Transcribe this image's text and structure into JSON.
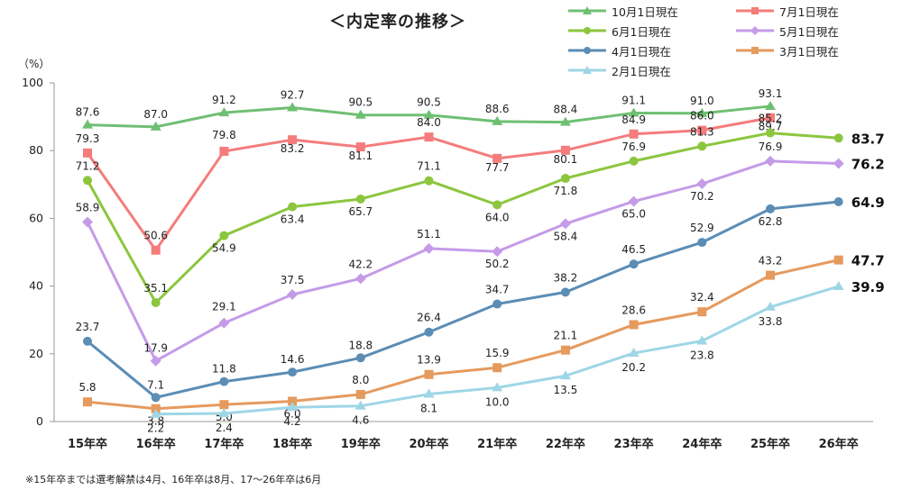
{
  "title": "＜内定率の推移＞",
  "unit_label": "（%）",
  "footnote": "※15年卒までは選考解禁は4月、16年卒は8月、17〜26年卒は6月",
  "chart_data": {
    "type": "line",
    "title": "＜内定率の推移＞",
    "xlabel": "",
    "ylabel": "（%）",
    "ylim": [
      0,
      100
    ],
    "yticks": [
      "0",
      "20",
      "40",
      "60",
      "80",
      "100"
    ],
    "grid": false,
    "legend_position": "top-right",
    "categories": [
      "15年卒",
      "16年卒",
      "17年卒",
      "18年卒",
      "19年卒",
      "20年卒",
      "21年卒",
      "22年卒",
      "23年卒",
      "24年卒",
      "25年卒",
      "26年卒"
    ],
    "series": [
      {
        "name": "10月1日現在",
        "color": "#6fbf73",
        "marker": "triangle",
        "values": [
          87.6,
          87.0,
          91.2,
          92.7,
          90.5,
          90.5,
          88.6,
          88.4,
          91.1,
          91.0,
          93.1,
          null
        ],
        "labels": [
          "87.6",
          "87.0",
          "91.2",
          "92.7",
          "90.5",
          "90.5",
          "88.6",
          "88.4",
          "91.1",
          "91.0",
          "93.1",
          ""
        ]
      },
      {
        "name": "7月1日現在",
        "color": "#f47c7c",
        "marker": "square",
        "values": [
          79.3,
          50.6,
          79.8,
          83.2,
          81.1,
          84.0,
          77.7,
          80.1,
          84.9,
          86.0,
          89.7,
          null
        ],
        "labels": [
          "79.3",
          "50.6",
          "79.8",
          "83.2",
          "81.1",
          "84.0",
          "77.7",
          "80.1",
          "84.9",
          "86.0",
          "89.7",
          ""
        ]
      },
      {
        "name": "6月1日現在",
        "color": "#8cc63f",
        "marker": "circle",
        "values": [
          71.2,
          35.1,
          54.9,
          63.4,
          65.7,
          71.1,
          64.0,
          71.8,
          76.9,
          81.3,
          85.2,
          83.7
        ],
        "labels": [
          "71.2",
          "35.1",
          "54.9",
          "63.4",
          "65.7",
          "71.1",
          "64.0",
          "71.8",
          "76.9",
          "81.3",
          "85.2",
          "83.7"
        ]
      },
      {
        "name": "5月1日現在",
        "color": "#c59be8",
        "marker": "diamond",
        "values": [
          58.9,
          17.9,
          29.1,
          37.5,
          42.2,
          51.1,
          50.2,
          58.4,
          65.0,
          70.2,
          76.9,
          76.2
        ],
        "labels": [
          "58.9",
          "17.9",
          "29.1",
          "37.5",
          "42.2",
          "51.1",
          "50.2",
          "58.4",
          "65.0",
          "70.2",
          "76.9",
          "76.2"
        ]
      },
      {
        "name": "4月1日現在",
        "color": "#5b8db5",
        "marker": "circle",
        "values": [
          23.7,
          7.1,
          11.8,
          14.6,
          18.8,
          26.4,
          34.7,
          38.2,
          46.5,
          52.9,
          62.8,
          64.9
        ],
        "labels": [
          "23.7",
          "7.1",
          "11.8",
          "14.6",
          "18.8",
          "26.4",
          "34.7",
          "38.2",
          "46.5",
          "52.9",
          "62.8",
          "64.9"
        ]
      },
      {
        "name": "3月1日現在",
        "color": "#e59a5e",
        "marker": "square",
        "values": [
          5.8,
          3.8,
          5.0,
          6.0,
          8.0,
          13.9,
          15.9,
          21.1,
          28.6,
          32.4,
          43.2,
          47.7
        ],
        "labels": [
          "5.8",
          "3.8",
          "5.0",
          "6.0",
          "8.0",
          "13.9",
          "15.9",
          "21.1",
          "28.6",
          "32.4",
          "43.2",
          "47.7"
        ]
      },
      {
        "name": "2月1日現在",
        "color": "#9ed6e6",
        "marker": "triangle",
        "values": [
          null,
          2.2,
          2.4,
          4.2,
          4.6,
          8.1,
          10.0,
          13.5,
          20.2,
          23.8,
          33.8,
          39.9
        ],
        "labels": [
          "",
          "2.2",
          "2.4",
          "4.2",
          "4.6",
          "8.1",
          "10.0",
          "13.5",
          "20.2",
          "23.8",
          "33.8",
          "39.9"
        ]
      }
    ]
  }
}
